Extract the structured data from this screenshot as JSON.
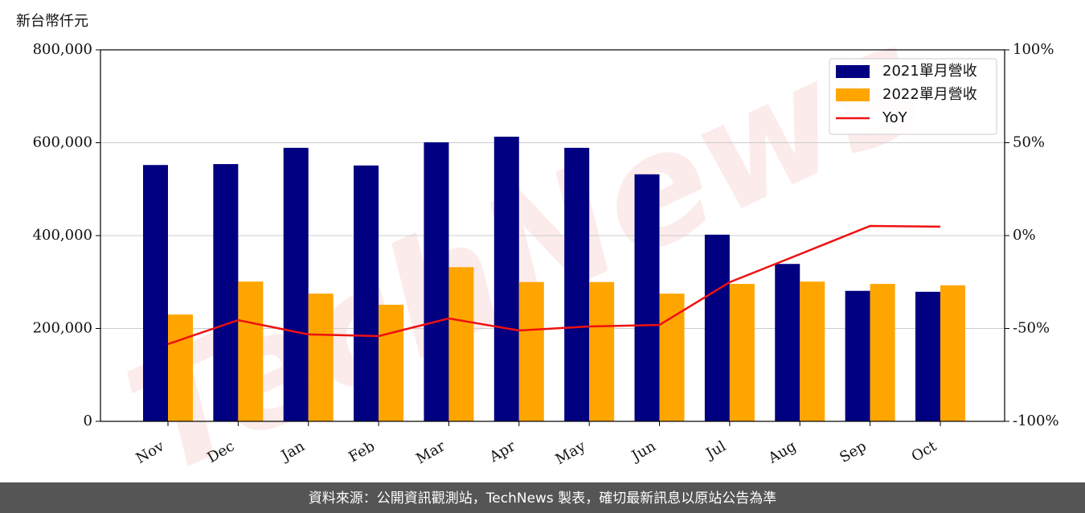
{
  "chart_data": {
    "type": "bar",
    "y_axis_label": "新台幣仟元",
    "watermark": "TechNews",
    "footer": "資料來源：公開資訊觀測站，TechNews 製表，確切最新訊息以原站公告為準",
    "categories": [
      "Nov",
      "Dec",
      "Jan",
      "Feb",
      "Mar",
      "Apr",
      "May",
      "Jun",
      "Jul",
      "Aug",
      "Sep",
      "Oct"
    ],
    "series": [
      {
        "name": "2021單月營收",
        "type": "bar",
        "color": "#000080",
        "values": [
          552000,
          554000,
          589000,
          551000,
          601000,
          613000,
          589000,
          532000,
          402000,
          339000,
          281000,
          279000
        ]
      },
      {
        "name": "2022單月營收",
        "type": "bar",
        "color": "#ffa500",
        "values": [
          230000,
          301000,
          275000,
          251000,
          332000,
          300000,
          300000,
          275000,
          296000,
          301000,
          296000,
          293000
        ]
      },
      {
        "name": "YoY",
        "type": "line",
        "axis": "y2",
        "color": "#ee1111",
        "values": [
          -58.4,
          -45.5,
          -53.2,
          -54.1,
          -44.6,
          -51.1,
          -48.9,
          -48.1,
          -25.1,
          -10,
          5.2,
          4.8
        ]
      }
    ],
    "ylim": [
      0,
      800000
    ],
    "yticks": [
      0,
      {
        "value": 200000,
        "label": "200,000"
      },
      {
        "value": 400000,
        "label": "400,000"
      },
      {
        "value": 600000,
        "label": "600,000"
      },
      {
        "value": 800000,
        "label": "800,000"
      }
    ],
    "y2lim": [
      -100,
      100
    ],
    "y2ticks": [
      {
        "value": -100,
        "label": "-100%"
      },
      {
        "value": -50,
        "label": "-50%"
      },
      {
        "value": 0,
        "label": "0%"
      },
      {
        "value": 50,
        "label": "50%"
      },
      {
        "value": 100,
        "label": "100%"
      }
    ],
    "grid": true,
    "legend": "upper-right"
  }
}
